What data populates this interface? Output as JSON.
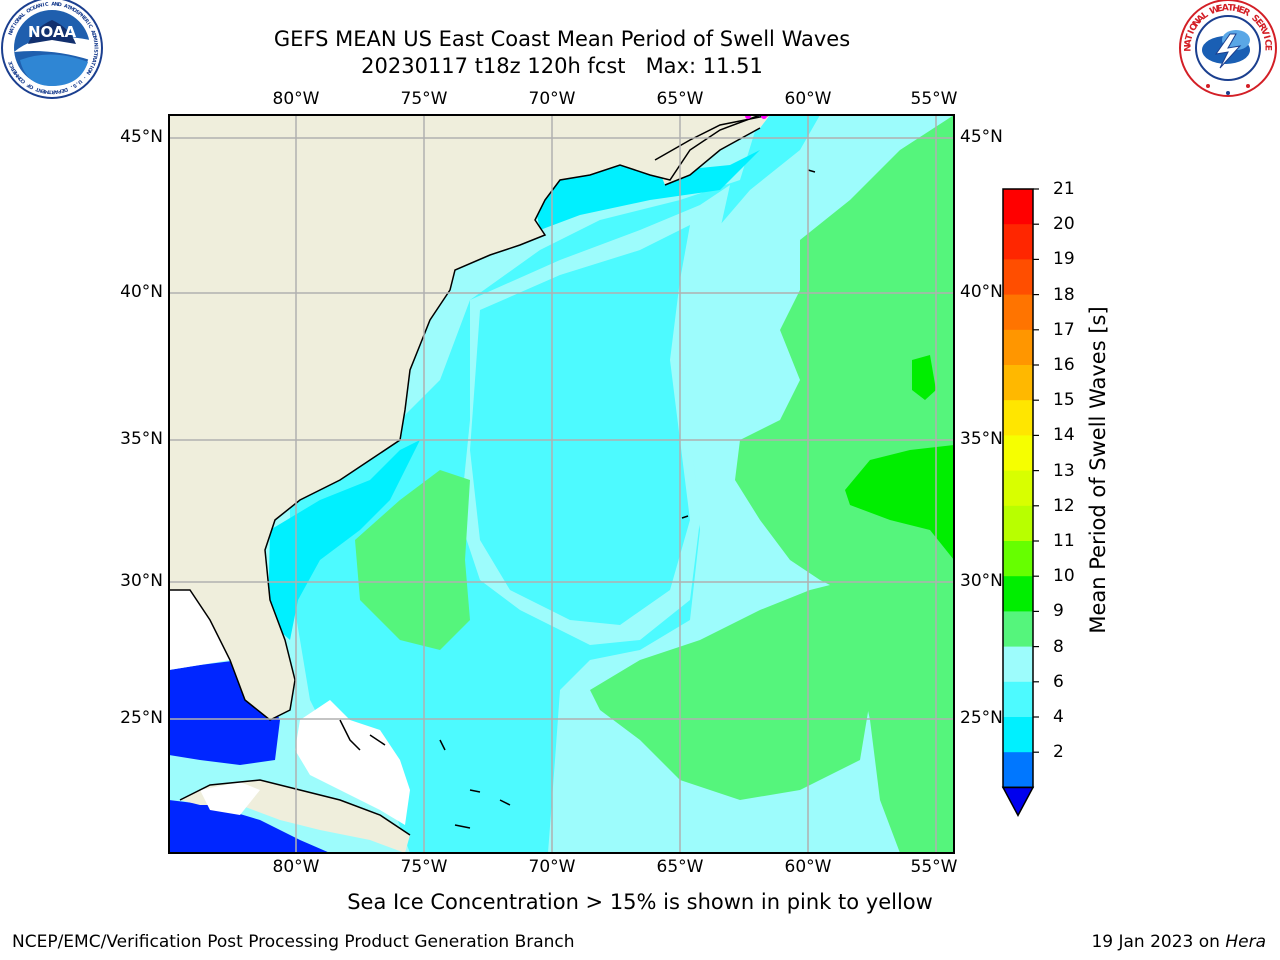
{
  "title": {
    "line1": "GEFS MEAN US East Coast Mean Period of Swell Waves",
    "line2": "20230117 t18z 120h fcst   Max: 11.51"
  },
  "logos": {
    "left": {
      "name": "NOAA",
      "ring_text": "NATIONAL OCEANIC AND ATMOSPHERIC ADMINISTRATION · U.S. DEPARTMENT OF COMMERCE",
      "icon": "noaa-logo"
    },
    "right": {
      "ring_text": "NATIONAL WEATHER SERVICE",
      "icon": "nws-logo"
    }
  },
  "map": {
    "lon_ticks": [
      "80°W",
      "75°W",
      "70°W",
      "65°W",
      "60°W",
      "55°W"
    ],
    "lat_ticks": [
      "45°N",
      "40°N",
      "35°N",
      "30°N",
      "25°N"
    ],
    "colors": {
      "land": "#efeedc",
      "grid": "#b0b0b0",
      "p2_4": "#0026ff",
      "p4_6": "#00f0ff",
      "p6_8": "#4dfaff",
      "p8_9": "#9dfcfc",
      "p9_10": "#55f57c",
      "p10_11": "#00ee00"
    }
  },
  "colorbar": {
    "title": "Mean Period of Swell Waves [s]",
    "labels": [
      "21",
      "20",
      "19",
      "18",
      "17",
      "16",
      "15",
      "14",
      "13",
      "12",
      "11",
      "10",
      "9",
      "8",
      "6",
      "4",
      "2"
    ],
    "colors": [
      "#ff0000",
      "#ff2600",
      "#ff4e00",
      "#ff7400",
      "#ff9600",
      "#ffb800",
      "#ffe600",
      "#f6ff00",
      "#d8ff00",
      "#b8ff00",
      "#66ff00",
      "#00ee00",
      "#55f57c",
      "#9dfcfc",
      "#4dfaff",
      "#00f0ff",
      "#0077ff"
    ],
    "under_color": "#0000ee"
  },
  "caption": "Sea Ice Concentration > 15% is shown in pink to yellow",
  "footer": {
    "left": "NCEP/EMC/Verification Post Processing Product Generation Branch",
    "right_date": "19 Jan 2023 on",
    "right_host": "Hera"
  }
}
